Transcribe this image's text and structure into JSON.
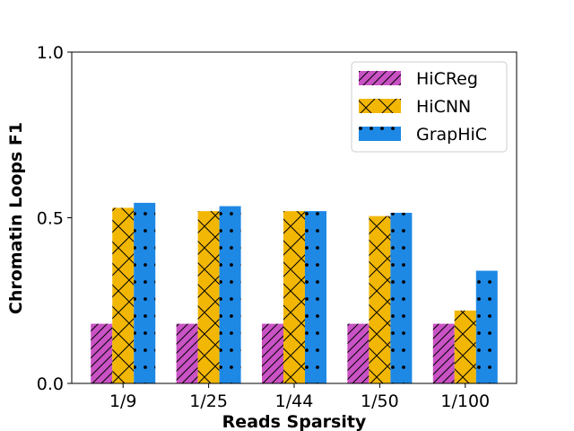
{
  "chart_data": {
    "type": "bar",
    "categories": [
      "1/9",
      "1/25",
      "1/44",
      "1/50",
      "1/100"
    ],
    "series": [
      {
        "name": "HiCReg",
        "values": [
          0.18,
          0.18,
          0.18,
          0.18,
          0.18
        ],
        "color": "#c952c4",
        "pattern": "diagonal-hatch"
      },
      {
        "name": "HiCNN",
        "values": [
          0.53,
          0.52,
          0.52,
          0.505,
          0.22
        ],
        "color": "#f2b705",
        "pattern": "cross-hatch"
      },
      {
        "name": "GrapHiC",
        "values": [
          0.545,
          0.535,
          0.52,
          0.515,
          0.34
        ],
        "color": "#1e88e5",
        "pattern": "dots"
      }
    ],
    "title": "",
    "xlabel": "Reads Sparsity",
    "ylabel": "Chromatin Loops F1",
    "ylim": [
      0,
      1.0
    ],
    "yticks": [
      0.0,
      0.5,
      1.0
    ],
    "ytick_labels": [
      "0.0",
      "0.5",
      "1.0"
    ],
    "grid": false,
    "legend_placement": "top-right"
  }
}
